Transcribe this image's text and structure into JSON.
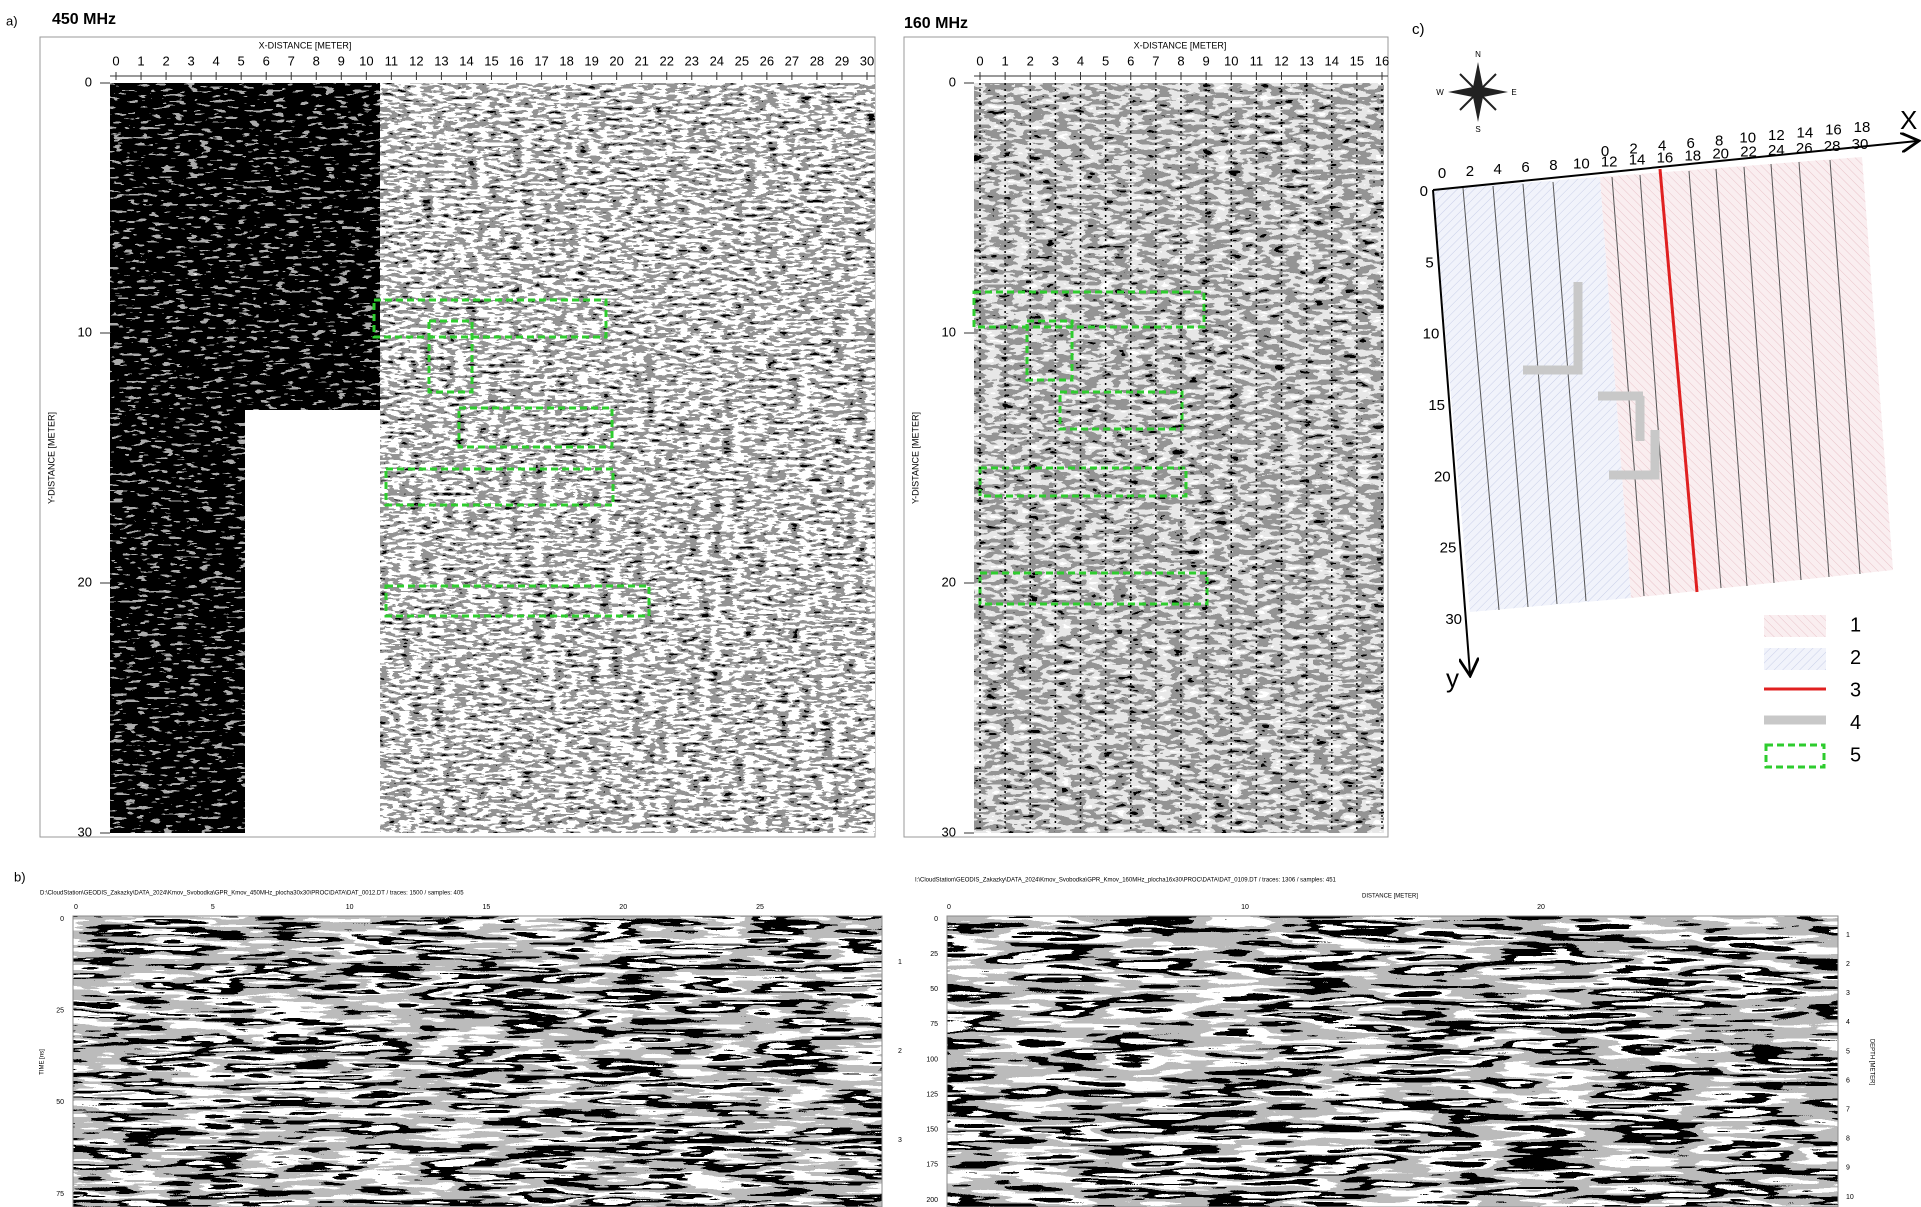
{
  "panel_a": {
    "label": "a)",
    "left": {
      "title": "450 MHz",
      "x_axis_label": "X-DISTANCE [METER]",
      "y_axis_label": "Y-DISTANCE [METER]",
      "x_ticks": [
        0,
        1,
        2,
        3,
        4,
        5,
        6,
        7,
        8,
        9,
        10,
        11,
        12,
        13,
        14,
        15,
        16,
        17,
        18,
        19,
        20,
        21,
        22,
        23,
        24,
        25,
        26,
        27,
        28,
        29,
        30
      ],
      "y_ticks": [
        0,
        10,
        20,
        30
      ]
    },
    "right": {
      "title": "160 MHz",
      "x_axis_label": "X-DISTANCE [METER]",
      "y_axis_label": "Y-DISTANCE [METER]",
      "x_ticks": [
        0,
        1,
        2,
        3,
        4,
        5,
        6,
        7,
        8,
        9,
        10,
        11,
        12,
        13,
        14,
        15,
        16
      ],
      "y_ticks": [
        0,
        10,
        20,
        30
      ]
    }
  },
  "panel_b": {
    "label": "b)",
    "left": {
      "header": "D:\\CloudStation\\GEODIS_Zakazky\\DATA_2024\\Kmov_Svobodka\\GPR_Kmov_450MHz_plocha30x30\\PROC\\DATA\\DAT_0012.DT / traces: 1500 / samples: 405",
      "y_axis_label": "TIME [ns]",
      "x_ticks": [
        0,
        5,
        10,
        15,
        20,
        25
      ],
      "y_ticks": [
        0,
        25,
        50,
        75
      ],
      "y2_ticks": [
        1,
        2,
        3
      ]
    },
    "right": {
      "header": "I:\\CloudStation\\GEODIS_Zakazky\\DATA_2024\\Kmov_Svobodka\\GPR_Kmov_160MHz_plocha16x30\\PROC\\DATA\\DAT_0109.DT / traces: 1306 / samples: 451",
      "x_axis_label": "DISTANCE [METER]",
      "y2_axis_label": "DEPTH [METER]",
      "x_ticks": [
        0,
        10,
        20
      ],
      "y_ticks": [
        0,
        25,
        50,
        75,
        100,
        125,
        150,
        175,
        200
      ],
      "y2_ticks": [
        1,
        2,
        3,
        4,
        5,
        6,
        7,
        8,
        9,
        10
      ]
    }
  },
  "panel_c": {
    "label": "c)",
    "compass": [
      "N",
      "E",
      "S",
      "W"
    ],
    "x_axis": "X",
    "y_axis": "y",
    "x_ticks_top": [
      0,
      2,
      4,
      6,
      8,
      10,
      12,
      14,
      16,
      18
    ],
    "x_ticks_bottom": [
      0,
      2,
      4,
      6,
      8,
      10,
      12,
      14,
      16,
      18,
      20,
      22,
      24,
      26,
      28,
      30
    ],
    "y_ticks": [
      0,
      5,
      10,
      15,
      20,
      25,
      30
    ],
    "legend": [
      "1",
      "2",
      "3",
      "4",
      "5"
    ]
  }
}
